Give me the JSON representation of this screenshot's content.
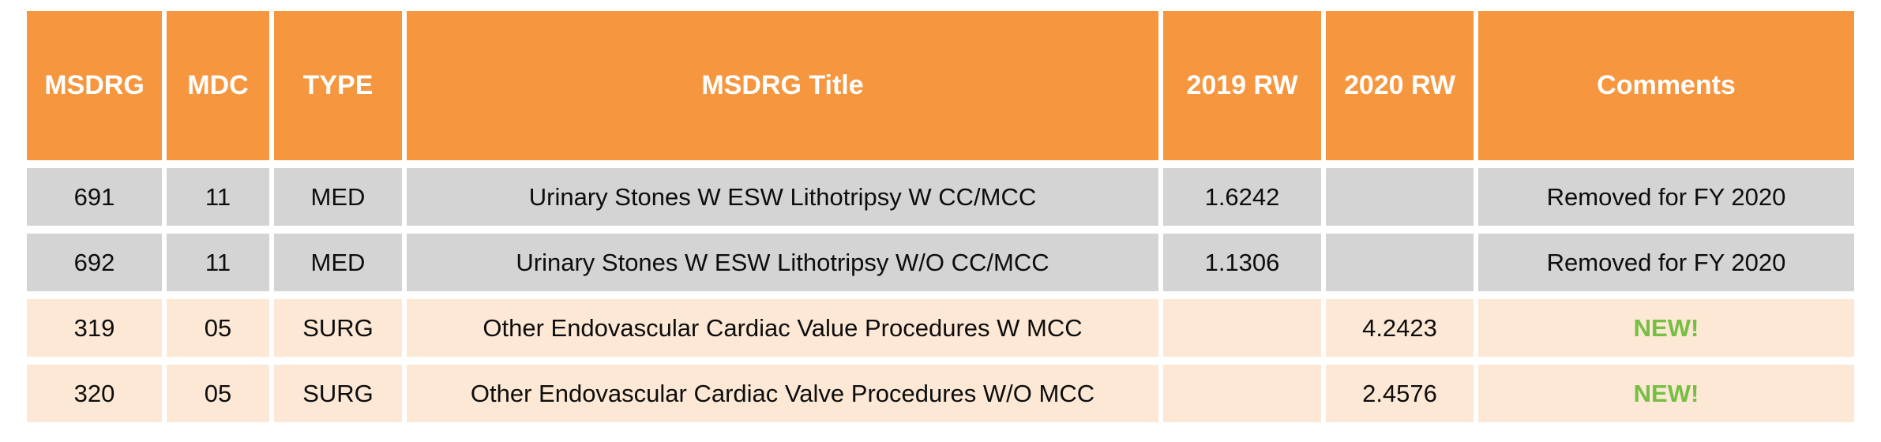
{
  "table": {
    "columns": [
      {
        "key": "msdrg",
        "label": "MSDRG"
      },
      {
        "key": "mdc",
        "label": "MDC"
      },
      {
        "key": "type",
        "label": "TYPE"
      },
      {
        "key": "title",
        "label": "MSDRG Title"
      },
      {
        "key": "rw2019",
        "label": "2019 RW"
      },
      {
        "key": "rw2020",
        "label": "2020 RW"
      },
      {
        "key": "comments",
        "label": "Comments"
      }
    ],
    "rows": [
      {
        "msdrg": "691",
        "mdc": "11",
        "type": "MED",
        "title": "Urinary Stones W ESW Lithotripsy W CC/MCC",
        "rw2019": "1.6242",
        "rw2020": "",
        "comments": "Removed for FY 2020",
        "row_style": "removed"
      },
      {
        "msdrg": "692",
        "mdc": "11",
        "type": "MED",
        "title": "Urinary Stones W ESW Lithotripsy W/O CC/MCC",
        "rw2019": "1.1306",
        "rw2020": "",
        "comments": "Removed for FY 2020",
        "row_style": "removed"
      },
      {
        "msdrg": "319",
        "mdc": "05",
        "type": "SURG",
        "title": "Other Endovascular Cardiac Value Procedures W MCC",
        "rw2019": "",
        "rw2020": "4.2423",
        "comments": "NEW!",
        "row_style": "new"
      },
      {
        "msdrg": "320",
        "mdc": "05",
        "type": "SURG",
        "title": "Other Endovascular Cardiac Valve Procedures W/O MCC",
        "rw2019": "",
        "rw2020": "2.4576",
        "comments": "NEW!",
        "row_style": "new"
      }
    ],
    "colors": {
      "header_bg": "#F6963E",
      "header_text": "#FFFFFF",
      "removed_row_bg": "#D4D4D4",
      "new_row_bg": "#FCE8D4",
      "new_comment_text": "#76BE44",
      "body_text": "#0D0D0D"
    }
  }
}
